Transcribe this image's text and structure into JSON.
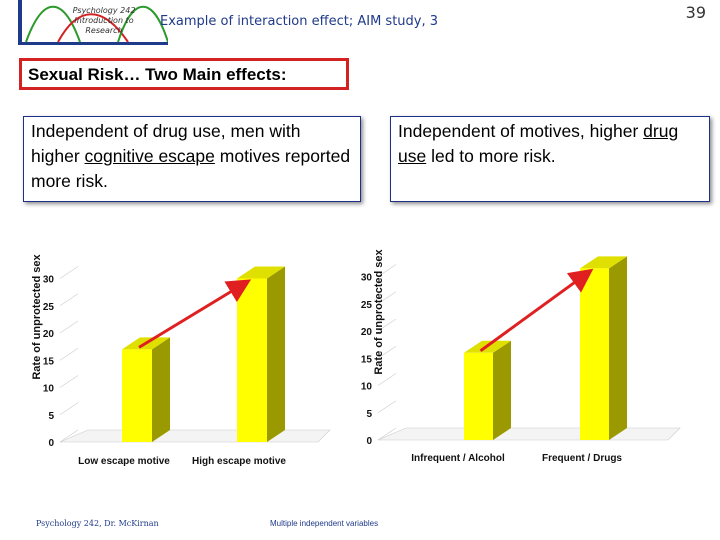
{
  "header": {
    "logo_text": "Psychology 242 Introduction to Research",
    "title": "Example of interaction effect; AIM study, 3",
    "page_number": "39"
  },
  "heading": "Sexual Risk… Two Main effects:",
  "left_box": {
    "text_before": "Independent of drug use, men with higher ",
    "underlined": "cognitive escape",
    "text_after": " motives reported more risk."
  },
  "right_box": {
    "text_before": "Independent of motives, higher ",
    "underlined": "drug use",
    "text_after": " led to more risk."
  },
  "footer": {
    "left": "Psychology 242, Dr. McKirnan",
    "center": "Multiple independent variables"
  },
  "colors": {
    "bar": "#ffff00",
    "bar_side": "#9a9a00",
    "bar_top": "#e0e000",
    "arrow": "#e02020",
    "accent": "#1f3a8a",
    "heading_border": "#d32222"
  },
  "chart_data": [
    {
      "type": "bar",
      "title": "",
      "xlabel": "",
      "ylabel": "Rate of unprotected sex",
      "categories": [
        "Low escape motive",
        "High escape motive"
      ],
      "values": [
        17,
        30
      ],
      "ylim": [
        0,
        35
      ],
      "yticks": [
        0,
        5,
        10,
        15,
        20,
        25,
        30
      ],
      "annotation": "arrow from low to high bar"
    },
    {
      "type": "bar",
      "title": "",
      "xlabel": "",
      "ylabel": "Rate of unprotected sex",
      "categories": [
        "Infrequent / Alcohol",
        "Frequent / Drugs"
      ],
      "values": [
        16,
        31.5
      ],
      "ylim": [
        0,
        35
      ],
      "yticks": [
        0,
        5,
        10,
        15,
        20,
        25,
        30
      ],
      "annotation": "arrow from low to high bar"
    }
  ]
}
